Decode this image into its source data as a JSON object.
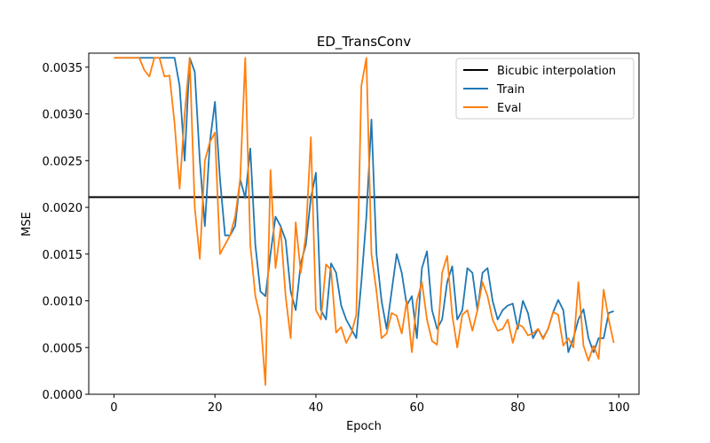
{
  "chart_data": {
    "type": "line",
    "title": "ED_TransConv",
    "xlabel": "Epoch",
    "ylabel": "MSE",
    "xlim": [
      -5,
      104
    ],
    "ylim": [
      0,
      0.00365
    ],
    "x_ticks": [
      0,
      20,
      40,
      60,
      80,
      100
    ],
    "x_tick_labels": [
      "0",
      "20",
      "40",
      "60",
      "80",
      "100"
    ],
    "y_ticks": [
      0,
      0.0005,
      0.001,
      0.0015,
      0.002,
      0.0025,
      0.003,
      0.0035
    ],
    "y_tick_labels": [
      "0.0000",
      "0.0005",
      "0.0010",
      "0.0015",
      "0.0020",
      "0.0025",
      "0.0030",
      "0.0035"
    ],
    "grid": false,
    "legend_position": "top-right",
    "legend": [
      "Bicubic interpolation",
      "Train",
      "Eval"
    ],
    "baseline": {
      "name": "Bicubic interpolation",
      "value": 0.00211,
      "color": "#000000"
    },
    "series": [
      {
        "name": "Train",
        "color": "#1f77b4",
        "x_start": 0,
        "values": [
          0.0036,
          0.0036,
          0.0036,
          0.0036,
          0.0036,
          0.0036,
          0.0036,
          0.0036,
          0.0036,
          0.0036,
          0.0036,
          0.0036,
          0.0036,
          0.0033,
          0.0025,
          0.0036,
          0.00345,
          0.0025,
          0.0018,
          0.0027,
          0.00313,
          0.0023,
          0.0017,
          0.0017,
          0.0018,
          0.0023,
          0.0021,
          0.00263,
          0.0016,
          0.0011,
          0.00105,
          0.0015,
          0.0019,
          0.0018,
          0.00165,
          0.0011,
          0.0009,
          0.0014,
          0.0016,
          0.0021,
          0.00237,
          0.0009,
          0.0008,
          0.0014,
          0.0013,
          0.00095,
          0.0008,
          0.0007,
          0.0006,
          0.0012,
          0.0019,
          0.00294,
          0.0015,
          0.001,
          0.0007,
          0.0011,
          0.0015,
          0.0013,
          0.00095,
          0.00105,
          0.0006,
          0.00135,
          0.00153,
          0.0009,
          0.0007,
          0.0008,
          0.0012,
          0.00137,
          0.0008,
          0.0009,
          0.00135,
          0.0013,
          0.0009,
          0.0013,
          0.00135,
          0.001,
          0.0008,
          0.0009,
          0.00095,
          0.00097,
          0.0007,
          0.001,
          0.00087,
          0.0006,
          0.0007,
          0.0006,
          0.0007,
          0.00088,
          0.00101,
          0.0009,
          0.00045,
          0.0006,
          0.0008,
          0.00091,
          0.0006,
          0.00045,
          0.0006,
          0.0006,
          0.00087,
          0.00089
        ]
      },
      {
        "name": "Eval",
        "color": "#ff7f0e",
        "x_start": 0,
        "values": [
          0.0036,
          0.0036,
          0.0036,
          0.0036,
          0.0036,
          0.0036,
          0.00347,
          0.0034,
          0.0036,
          0.0036,
          0.0034,
          0.00341,
          0.0029,
          0.0022,
          0.003,
          0.0036,
          0.002,
          0.00145,
          0.0025,
          0.0027,
          0.0028,
          0.0015,
          0.0016,
          0.0017,
          0.0019,
          0.0023,
          0.0036,
          0.0016,
          0.00105,
          0.00082,
          0.0001,
          0.0024,
          0.00135,
          0.00178,
          0.00105,
          0.0006,
          0.00184,
          0.0013,
          0.0017,
          0.00275,
          0.0009,
          0.0008,
          0.00139,
          0.00133,
          0.00066,
          0.00072,
          0.00055,
          0.00065,
          0.00085,
          0.0033,
          0.0036,
          0.0015,
          0.0011,
          0.0006,
          0.00065,
          0.00087,
          0.00084,
          0.00065,
          0.001,
          0.00045,
          0.001,
          0.0012,
          0.0008,
          0.00057,
          0.00053,
          0.0013,
          0.00148,
          0.00085,
          0.0005,
          0.00085,
          0.0009,
          0.00068,
          0.0009,
          0.0012,
          0.00105,
          0.0008,
          0.00068,
          0.0007,
          0.0008,
          0.00055,
          0.00075,
          0.00072,
          0.00063,
          0.00065,
          0.0007,
          0.00059,
          0.0007,
          0.00088,
          0.00085,
          0.00052,
          0.0006,
          0.0005,
          0.0012,
          0.00052,
          0.00036,
          0.00052,
          0.00038,
          0.00112,
          0.0008,
          0.00055
        ]
      }
    ]
  }
}
